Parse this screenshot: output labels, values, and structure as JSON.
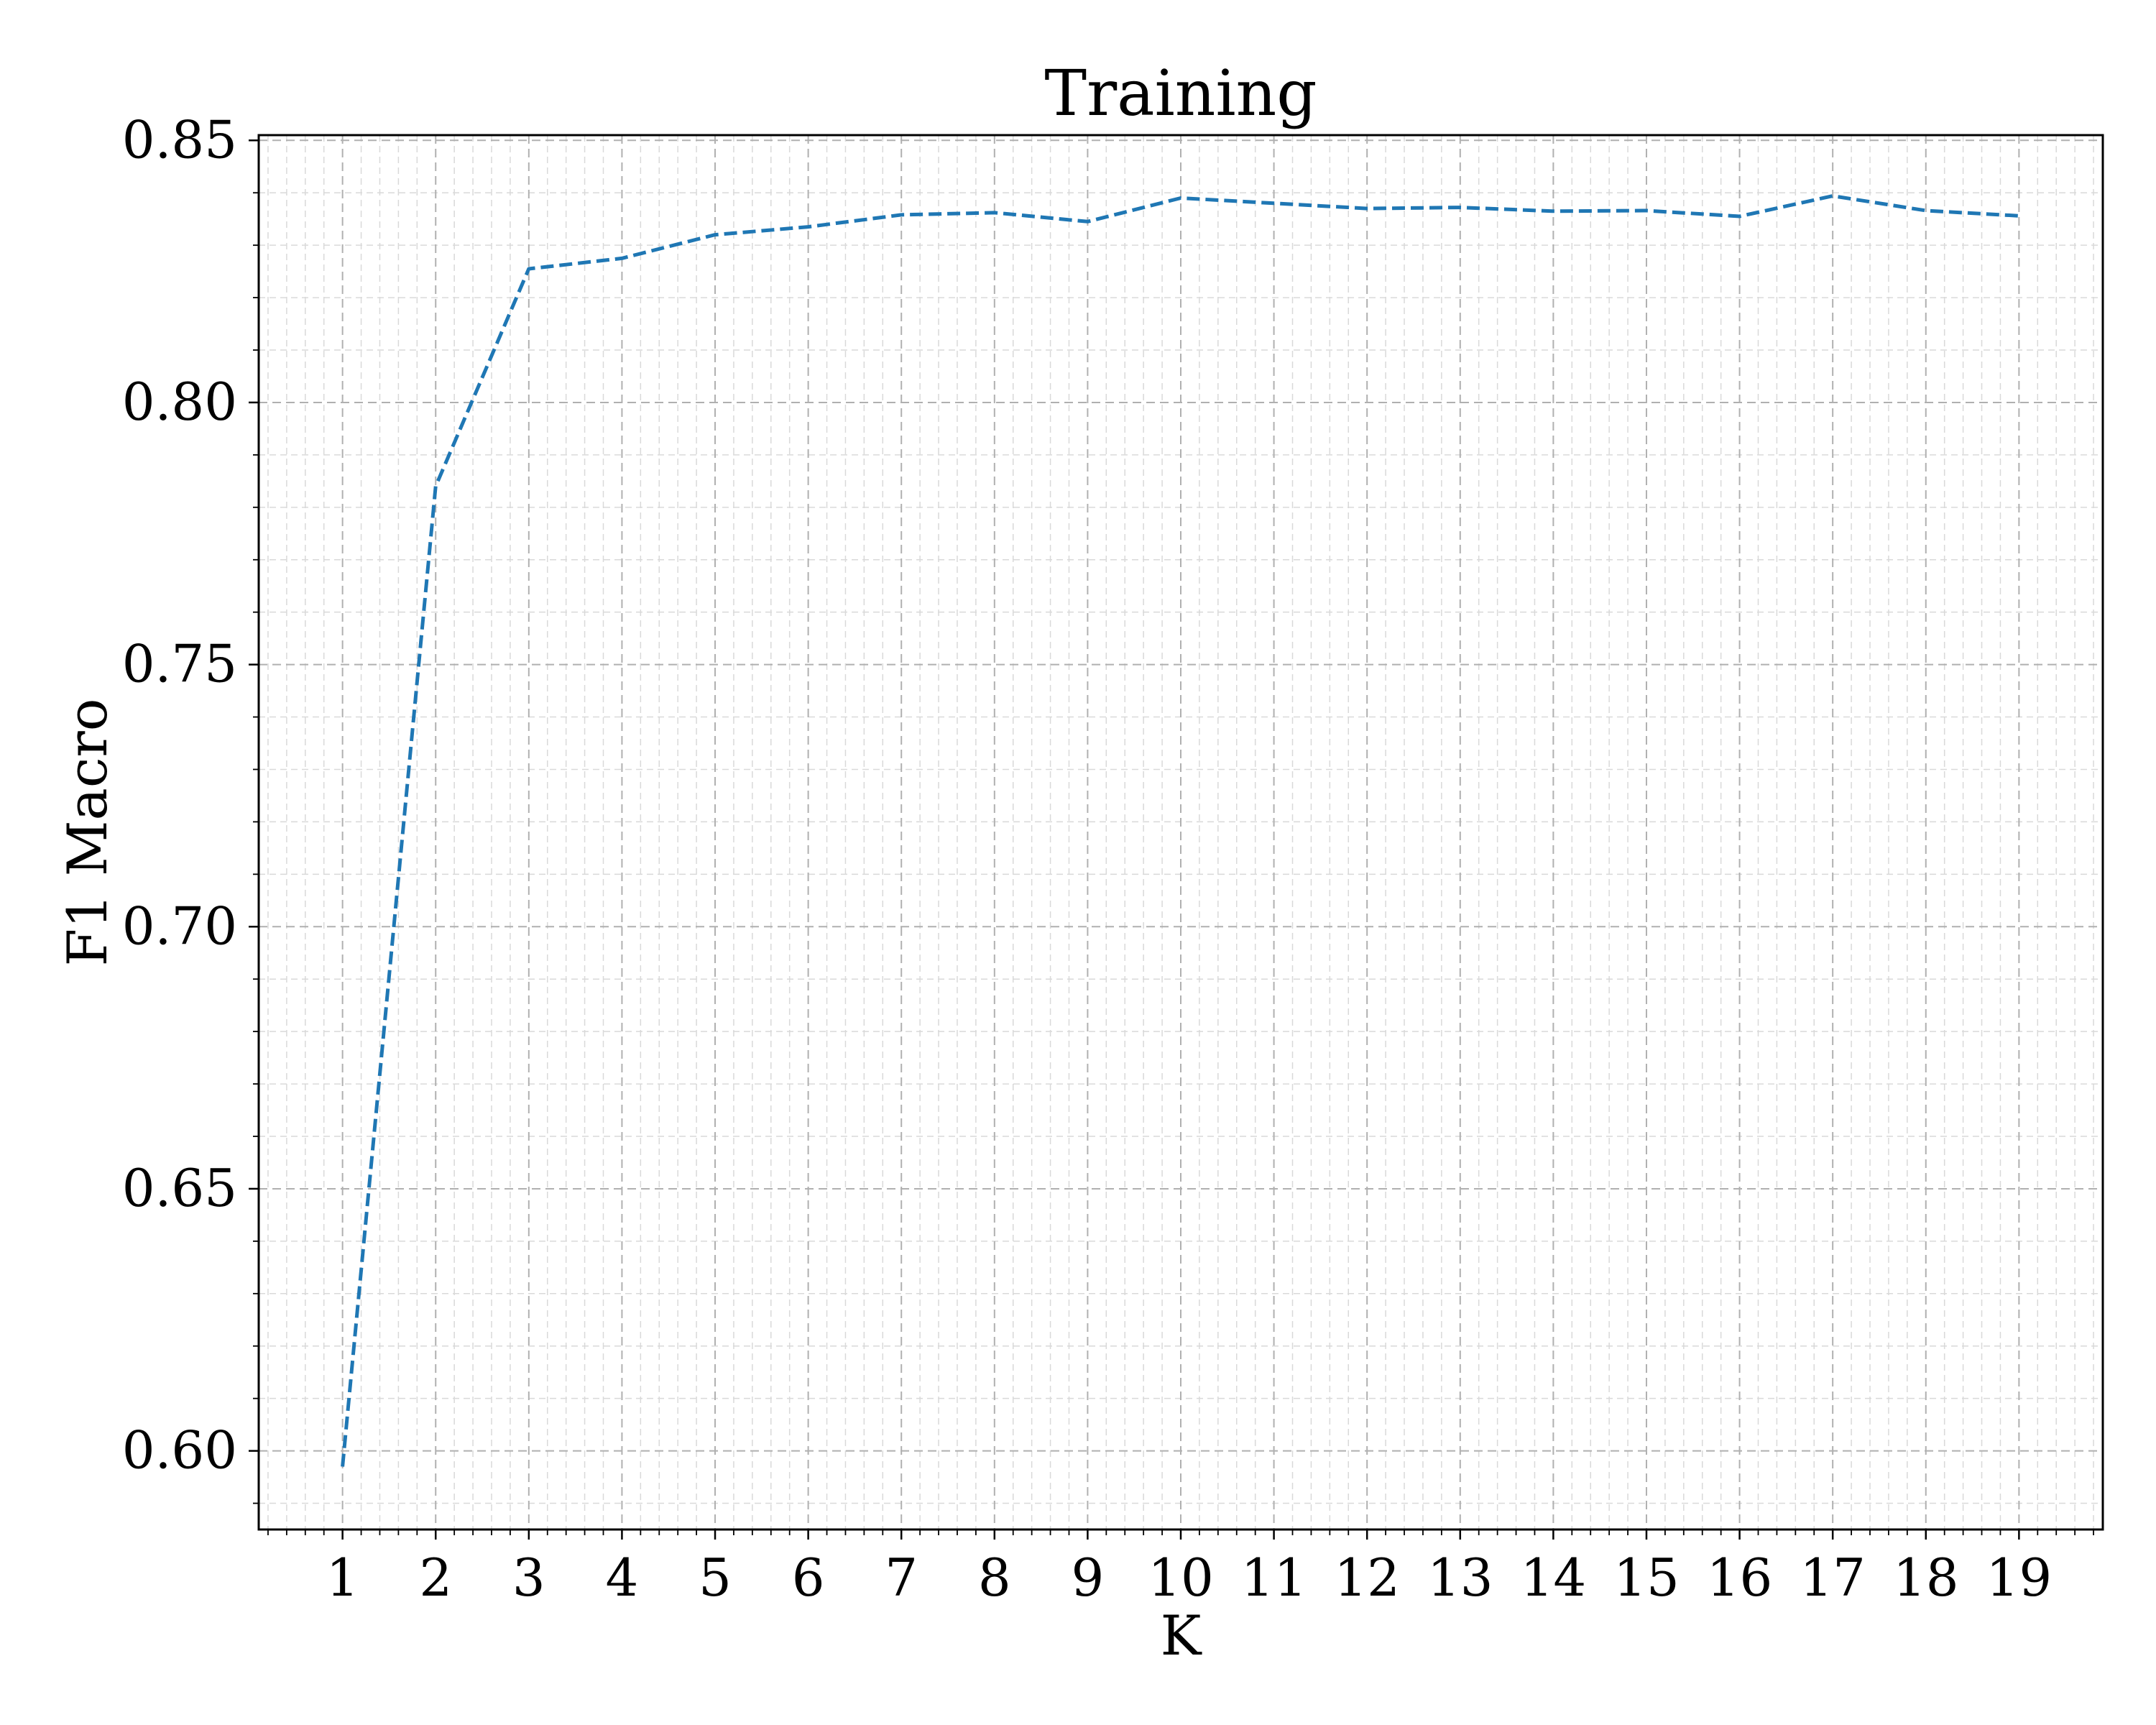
{
  "chart_data": {
    "type": "line",
    "title": "Training",
    "xlabel": "K",
    "ylabel": "F1 Macro",
    "x_ticks": [
      "1",
      "2",
      "3",
      "4",
      "5",
      "6",
      "7",
      "8",
      "9",
      "10",
      "11",
      "12",
      "13",
      "14",
      "15",
      "16",
      "17",
      "18",
      "19"
    ],
    "y_ticks": [
      "0.60",
      "0.65",
      "0.70",
      "0.75",
      "0.80",
      "0.85"
    ],
    "xlim": [
      0.1,
      19.9
    ],
    "ylim": [
      0.585,
      0.851
    ],
    "grid": true,
    "minor_grid": true,
    "series": [
      {
        "line_style": "dashed",
        "color": "#1f77b4",
        "x": [
          1,
          2,
          3,
          4,
          5,
          6,
          7,
          8,
          9,
          10,
          11,
          12,
          13,
          14,
          15,
          16,
          17,
          18,
          19
        ],
        "y": [
          0.597,
          0.784,
          0.8255,
          0.8275,
          0.832,
          0.8335,
          0.8358,
          0.8362,
          0.8345,
          0.839,
          0.838,
          0.837,
          0.8372,
          0.8365,
          0.8366,
          0.8355,
          0.8394,
          0.8366,
          0.8356
        ]
      }
    ]
  },
  "colors": {
    "line": "#1f77b4",
    "major_grid": "#b0b0b0",
    "minor_grid": "#d9d9d9",
    "axes": "#000000"
  }
}
